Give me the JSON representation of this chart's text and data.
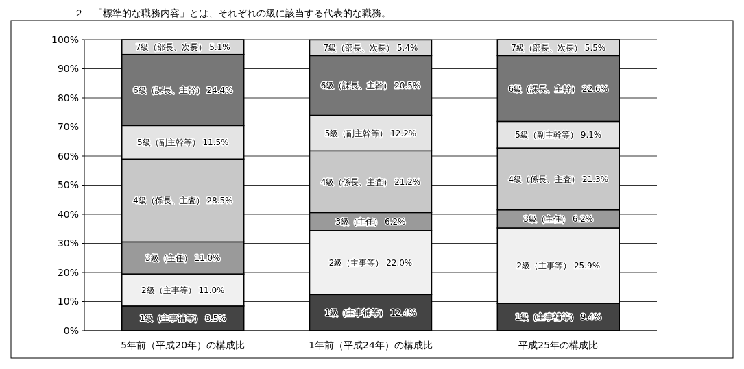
{
  "chart_data": {
    "type": "bar",
    "stacked": true,
    "annotations": [
      "２　「標準的な職務内容」とは、それぞれの級に該当する代表的な職務。"
    ],
    "categories": [
      "5年前（平成20年）の構成比",
      "1年前（平成24年）の構成比",
      "平成25年の構成比"
    ],
    "series": [
      {
        "name": "1級（主事補等）",
        "color": "#444444",
        "values": [
          8.5,
          12.4,
          9.4
        ],
        "value_labels": [
          "8.5%",
          "12.4%",
          "9.4%"
        ]
      },
      {
        "name": "2級（主事等）",
        "color": "#f0f0f0",
        "values": [
          11.0,
          22.0,
          25.9
        ],
        "value_labels": [
          "11.0%",
          "22.0%",
          "25.9%"
        ]
      },
      {
        "name": "3級（主任）",
        "color": "#9a9a9a",
        "values": [
          11.0,
          6.2,
          6.2
        ],
        "value_labels": [
          "11.0%",
          "6.2%",
          "6.2%"
        ]
      },
      {
        "name": "4級（係長、主査）",
        "color": "#c8c8c8",
        "values": [
          28.5,
          21.2,
          21.3
        ],
        "value_labels": [
          "28.5%",
          "21.2%",
          "21.3%"
        ]
      },
      {
        "name": "5級（副主幹等）",
        "color": "#e4e4e4",
        "values": [
          11.5,
          12.2,
          9.1
        ],
        "value_labels": [
          "11.5%",
          "12.2%",
          "9.1%"
        ]
      },
      {
        "name": "6級（課長、主幹）",
        "color": "#777777",
        "values": [
          24.4,
          20.5,
          22.6
        ],
        "value_labels": [
          "24.4%",
          "20.5%",
          "22.6%"
        ]
      },
      {
        "name": "7級（部長、次長）",
        "color": "#d8d8d8",
        "values": [
          5.1,
          5.4,
          5.5
        ],
        "value_labels": [
          "5.1%",
          "5.4%",
          "5.5%"
        ]
      }
    ],
    "ylim": [
      0,
      100
    ],
    "yticks": [
      {
        "value": 0,
        "label": "0%"
      },
      {
        "value": 10,
        "label": "10%"
      },
      {
        "value": 20,
        "label": "20%"
      },
      {
        "value": 30,
        "label": "30%"
      },
      {
        "value": 40,
        "label": "40%"
      },
      {
        "value": 50,
        "label": "50%"
      },
      {
        "value": 60,
        "label": "60%"
      },
      {
        "value": 70,
        "label": "70%"
      },
      {
        "value": 80,
        "label": "80%"
      },
      {
        "value": 90,
        "label": "90%"
      },
      {
        "value": 100,
        "label": "100%"
      }
    ],
    "grid": "y"
  }
}
